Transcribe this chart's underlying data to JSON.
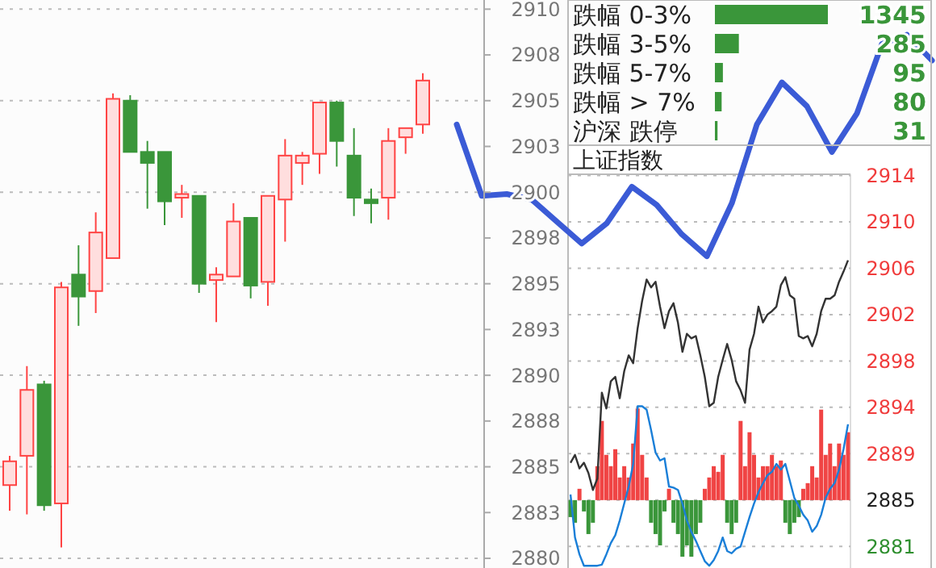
{
  "chart_data": [
    {
      "type": "candlestick",
      "categories": [
        null,
        null,
        null,
        null,
        null,
        null,
        null,
        null,
        null,
        null,
        null,
        null,
        null,
        null,
        null,
        null,
        null,
        null,
        null,
        null,
        null,
        null,
        null,
        null,
        null
      ],
      "ohlc": [
        [
          2884.0,
          2885.6,
          2882.6,
          2885.3
        ],
        [
          2885.6,
          2890.5,
          2882.4,
          2889.2
        ],
        [
          2889.5,
          2889.7,
          2882.6,
          2882.9
        ],
        [
          2883.0,
          2895.1,
          2880.6,
          2894.8
        ],
        [
          2895.5,
          2897.1,
          2892.7,
          2894.3
        ],
        [
          2894.6,
          2898.9,
          2893.4,
          2897.8
        ],
        [
          2896.4,
          2905.4,
          2896.4,
          2905.1
        ],
        [
          2905.0,
          2905.3,
          2902.2,
          2902.2
        ],
        [
          2902.2,
          2902.8,
          2899.1,
          2901.6
        ],
        [
          2902.2,
          2902.2,
          2898.2,
          2899.5
        ],
        [
          2899.7,
          2900.4,
          2898.6,
          2899.9
        ],
        [
          2899.8,
          2899.8,
          2894.5,
          2895.0
        ],
        [
          2895.2,
          2895.9,
          2892.9,
          2895.5
        ],
        [
          2895.4,
          2899.4,
          2895.4,
          2898.4
        ],
        [
          2898.6,
          2898.6,
          2894.2,
          2894.9
        ],
        [
          2895.1,
          2899.8,
          2893.8,
          2899.8
        ],
        [
          2899.6,
          2902.9,
          2897.3,
          2902.0
        ],
        [
          2901.6,
          2902.2,
          2900.4,
          2902.0
        ],
        [
          2902.1,
          2904.9,
          2901.0,
          2904.9
        ],
        [
          2904.9,
          2905.0,
          2901.4,
          2902.8
        ],
        [
          2902.0,
          2903.5,
          2898.7,
          2899.7
        ],
        [
          2899.6,
          2900.2,
          2898.3,
          2899.4
        ],
        [
          2899.7,
          2903.5,
          2898.5,
          2902.8
        ],
        [
          2903.0,
          2903.5,
          2902.1,
          2903.5
        ],
        [
          2903.7,
          2906.5,
          2903.2,
          2906.1
        ]
      ],
      "colors": [
        "#ff4444",
        "#ff4444",
        "#3a963a",
        "#ff4444",
        "#3a963a",
        "#ff4444",
        "#ff4444",
        "#3a963a",
        "#3a963a",
        "#3a963a",
        "#ff4444",
        "#3a963a",
        "#ff4444",
        "#ff4444",
        "#3a963a",
        "#ff4444",
        "#ff4444",
        "#ff4444",
        "#ff4444",
        "#3a963a",
        "#3a963a",
        "#3a963a",
        "#ff4444",
        "#ff4444",
        "#ff4444"
      ],
      "ylim": [
        2880,
        2910.5
      ],
      "yticks": [
        2880,
        {
          "value": 2882.5,
          "label": "2883"
        },
        2885,
        {
          "value": 2887.5,
          "label": "2888"
        },
        2890,
        {
          "value": 2892.5,
          "label": "2893"
        },
        2895,
        {
          "value": 2897.5,
          "label": "2898"
        },
        2900,
        {
          "value": 2902.5,
          "label": "2903"
        },
        2905,
        {
          "value": 2907.5,
          "label": "2908"
        },
        2910
      ],
      "grid": "y"
    },
    {
      "type": "bar",
      "orientation": "horizontal",
      "categories": [
        "跌幅 0-3%",
        "跌幅 3-5%",
        "跌幅 5-7%",
        "跌幅 > 7%",
        "沪深 跌停"
      ],
      "values": [
        1345,
        285,
        95,
        80,
        31
      ],
      "color": "#3a963a",
      "data_labels": true
    },
    {
      "type": "line",
      "title": "上证指数",
      "categories": [
        null,
        null,
        null,
        null,
        null,
        null,
        null,
        null,
        null,
        null,
        null,
        null,
        null,
        null,
        null,
        null,
        null,
        null,
        null,
        null,
        null,
        null,
        null,
        null,
        null,
        null,
        null,
        null,
        null,
        null,
        null,
        null,
        null,
        null,
        null,
        null,
        null,
        null,
        null,
        null,
        null,
        null,
        null,
        null,
        null,
        null,
        null,
        null,
        null,
        null,
        null,
        null,
        null,
        null,
        null,
        null,
        null,
        null,
        null,
        null,
        null,
        null,
        null
      ],
      "series": [
        {
          "type": "bar",
          "values": [
            -1.5,
            -2,
            1,
            -1,
            -3,
            -2,
            3,
            7,
            4,
            3,
            4.5,
            2,
            3,
            2,
            5,
            8.1,
            4,
            2,
            -2,
            -3,
            -4,
            -1,
            1,
            -2,
            -3,
            -5,
            -4,
            -5,
            -3,
            -2,
            1,
            2,
            3,
            2.5,
            4,
            -2,
            -3,
            -2,
            7,
            3,
            6,
            4,
            2,
            3,
            3,
            4,
            3,
            3.5,
            -2,
            -3,
            -2,
            -1.5,
            1,
            1.5,
            3,
            2,
            8,
            4,
            5,
            3,
            5,
            4,
            6
          ],
          "base": [
            2885.3,
            2885.3,
            2885.3,
            2885.3,
            2885.3,
            2885.3,
            2885.3,
            2885.3,
            2885.3,
            2885.3,
            2885.3,
            2885.3,
            2885.3,
            2885.3,
            2885.3,
            2885.3,
            2885.3,
            2885.3,
            2885.3,
            2885.3,
            2885.3,
            2885.3,
            2885.3,
            2885.3,
            2885.3,
            2885.3,
            2885.3,
            2885.3,
            2885.3,
            2885.3,
            2885.3,
            2885.3,
            2885.3,
            2885.3,
            2885.3,
            2885.3,
            2885.3,
            2885.3,
            2885.3,
            2885.3,
            2885.3,
            2885.3,
            2885.3,
            2885.3,
            2885.3,
            2885.3,
            2885.3,
            2885.3,
            2885.3,
            2885.3,
            2885.3,
            2885.3,
            2885.3,
            2885.3,
            2885.3,
            2885.3,
            2885.3,
            2885.3,
            2885.3,
            2885.3,
            2885.3,
            2885.3,
            2885.3
          ],
          "colors": [
            "#3a963a",
            "#3a963a",
            "#f04444",
            "#3a963a",
            "#3a963a",
            "#3a963a",
            "#f04444",
            "#f04444",
            "#f04444",
            "#f04444",
            "#f04444",
            "#f04444",
            "#f04444",
            "#f04444",
            "#f04444",
            "#f04444",
            "#f04444",
            "#f04444",
            "#3a963a",
            "#3a963a",
            "#3a963a",
            "#3a963a",
            "#f04444",
            "#3a963a",
            "#3a963a",
            "#3a963a",
            "#3a963a",
            "#3a963a",
            "#3a963a",
            "#3a963a",
            "#f04444",
            "#f04444",
            "#f04444",
            "#f04444",
            "#f04444",
            "#3a963a",
            "#3a963a",
            "#3a963a",
            "#f04444",
            "#f04444",
            "#f04444",
            "#f04444",
            "#f04444",
            "#f04444",
            "#f04444",
            "#f04444",
            "#f04444",
            "#f04444",
            "#3a963a",
            "#3a963a",
            "#3a963a",
            "#3a963a",
            "#f04444",
            "#f04444",
            "#f04444",
            "#f04444",
            "#f04444",
            "#f04444",
            "#f04444",
            "#f04444",
            "#f04444",
            "#f04444",
            "#f04444"
          ]
        },
        {
          "type": "line",
          "color": "#1a7fd8",
          "values": [
            2885.8,
            2882,
            2880.5,
            2879.5,
            2879.5,
            2879.5,
            2879.5,
            2879.6,
            2880.5,
            2881.5,
            2882.2,
            2883.5,
            2885.0,
            2886.5,
            2888.5,
            2893.6,
            2893.6,
            2893.3,
            2891.5,
            2889.5,
            2888.8,
            2889.0,
            2886.5,
            2886.4,
            2886.2,
            2885.0,
            2883.5,
            2882.5,
            2881.7,
            2880.8,
            2879.9,
            2879.5,
            2880.0,
            2880.8,
            2882.0,
            2880.8,
            2880.6,
            2881.0,
            2881.2,
            2882.5,
            2883.8,
            2885.0,
            2886.0,
            2886.8,
            2887.5,
            2887.8,
            2888.5,
            2888.0,
            2888.5,
            2887.0,
            2885.5,
            2884.8,
            2884.0,
            2883.5,
            2882.5,
            2883.0,
            2884.0,
            2885.5,
            2886.3,
            2886.8,
            2888.0,
            2889.8,
            2892.0
          ]
        },
        {
          "type": "line",
          "color": "#333333",
          "values": [
            2888.6,
            2889.3,
            2888.1,
            2888.6,
            2887.7,
            2886.2,
            2887.2,
            2894.8,
            2893.4,
            2895.8,
            2896.2,
            2894.3,
            2896.7,
            2898.1,
            2897.4,
            2900.5,
            2902.9,
            2904.8,
            2904.1,
            2904.6,
            2902.4,
            2900.5,
            2902.0,
            2902.7,
            2901.0,
            2898.4,
            2900.0,
            2899.6,
            2899.8,
            2898.1,
            2896.2,
            2893.6,
            2893.9,
            2896.2,
            2897.7,
            2899.1,
            2897.7,
            2895.8,
            2895.0,
            2893.9,
            2898.6,
            2900.0,
            2902.4,
            2901.0,
            2901.7,
            2902.0,
            2902.4,
            2904.3,
            2905.0,
            2903.4,
            2903.1,
            2899.8,
            2899.6,
            2899.8,
            2898.9,
            2900.0,
            2902.0,
            2903.1,
            2903.1,
            2903.4,
            2904.6,
            2905.5,
            2906.5
          ]
        }
      ],
      "ylim": [
        2879.3,
        2914.1
      ],
      "yticks": [
        {
          "value": 2881.2,
          "label": "2881"
        },
        {
          "value": 2885.3,
          "label": "2885"
        },
        {
          "value": 2889.4,
          "label": "2889"
        },
        {
          "value": 2893.5,
          "label": "2894"
        },
        {
          "value": 2897.6,
          "label": "2898"
        },
        {
          "value": 2901.7,
          "label": "2902"
        },
        {
          "value": 2905.8,
          "label": "2906"
        },
        {
          "value": 2909.9,
          "label": "2910"
        },
        2914
      ],
      "grid": "y"
    },
    {
      "type": "line",
      "categories": [
        null,
        null,
        null,
        null,
        null,
        null,
        null,
        null,
        null,
        null,
        null,
        null,
        null,
        null,
        null,
        null,
        null,
        null,
        null,
        null
      ],
      "color": "#3b5bd6",
      "values": [
        2903.7,
        2899.8,
        2899.9,
        2899.6,
        2898.4,
        2897.2,
        2898.3,
        2900.3,
        2899.3,
        2897.7,
        2896.5,
        2899.4,
        2903.7,
        2906.0,
        2904.7,
        2902.2,
        2904.3,
        2908.1,
        2908.6,
        2907.2
      ],
      "ylim": [
        2880,
        2910.5
      ],
      "tick_labels": false
    }
  ]
}
